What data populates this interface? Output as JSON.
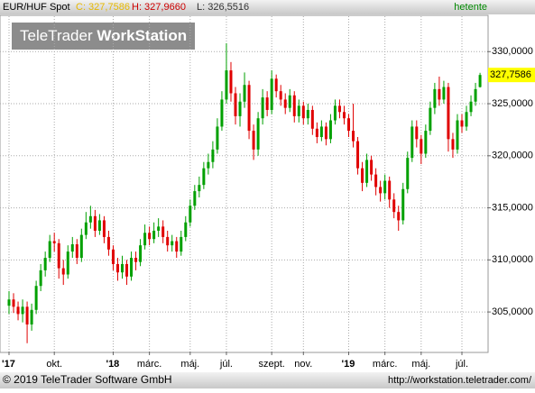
{
  "header": {
    "symbol": "EUR/HUF Spot",
    "close": "C: 327,7586",
    "high": "H: 327,9660",
    "low": "L: 326,5516",
    "period": "hetente"
  },
  "logo": {
    "brand": "TeleTrader",
    "product": "WorkStation"
  },
  "footer": {
    "copyright": "© 2019 TeleTrader Software GmbH",
    "url": "http://workstation.teletrader.com/"
  },
  "chart_data": {
    "type": "candlestick",
    "up_color": "#00a000",
    "down_color": "#e00000",
    "grid": true,
    "ylim": [
      301.2,
      333.4
    ],
    "yticks": [
      {
        "value": 305,
        "label": "305,0000"
      },
      {
        "value": 310,
        "label": "310,0000"
      },
      {
        "value": 315,
        "label": "315,0000"
      },
      {
        "value": 320,
        "label": "320,0000"
      },
      {
        "value": 325,
        "label": "325,0000"
      },
      {
        "value": 330,
        "label": "330,0000"
      }
    ],
    "last_value_label": "327,7586",
    "categories": [
      "'17",
      null,
      null,
      null,
      null,
      null,
      null,
      null,
      null,
      null,
      "okt.",
      null,
      null,
      null,
      null,
      null,
      null,
      null,
      null,
      null,
      null,
      null,
      null,
      "'18",
      null,
      null,
      null,
      null,
      null,
      null,
      null,
      "márc.",
      null,
      null,
      null,
      null,
      null,
      null,
      null,
      null,
      "máj.",
      null,
      null,
      null,
      null,
      null,
      null,
      null,
      "júl.",
      null,
      null,
      null,
      null,
      null,
      null,
      null,
      null,
      null,
      "szept.",
      null,
      null,
      null,
      null,
      null,
      null,
      "nov.",
      null,
      null,
      null,
      null,
      null,
      null,
      null,
      null,
      null,
      "'19",
      null,
      null,
      null,
      null,
      null,
      null,
      null,
      "márc.",
      null,
      null,
      null,
      null,
      null,
      null,
      null,
      "máj.",
      null,
      null,
      null,
      null,
      null,
      null,
      null,
      null,
      "júl.",
      null,
      null,
      null,
      null
    ],
    "open": [
      305.6,
      306.2,
      305.5,
      304.8,
      305.5,
      303.8,
      305.2,
      307.5,
      309.0,
      310.2,
      311.8,
      311.6,
      309.2,
      308.6,
      310.8,
      311.5,
      310.2,
      312.4,
      313.6,
      314.2,
      312.8,
      313.8,
      312.2,
      311.0,
      309.6,
      308.8,
      309.6,
      308.4,
      310.2,
      309.8,
      311.4,
      312.6,
      312.0,
      312.8,
      313.2,
      312.2,
      311.4,
      311.8,
      310.8,
      312.2,
      313.6,
      315.2,
      316.6,
      317.2,
      318.8,
      319.4,
      320.6,
      322.8,
      325.4,
      328.2,
      326.0,
      323.8,
      325.2,
      326.8,
      322.4,
      320.6,
      323.6,
      325.6,
      324.4,
      327.4,
      326.2,
      325.4,
      324.6,
      325.8,
      323.8,
      324.8,
      323.6,
      324.4,
      322.6,
      321.8,
      322.8,
      321.6,
      323.4,
      324.8,
      324.2,
      323.6,
      322.4,
      321.4,
      318.8,
      317.4,
      319.6,
      318.2,
      317.0,
      316.4,
      317.6,
      315.8,
      314.6,
      313.8,
      316.8,
      319.8,
      322.8,
      321.6,
      320.2,
      322.4,
      324.6,
      326.4,
      325.4,
      326.6,
      321.6,
      320.6,
      323.4,
      322.8,
      324.2,
      325.2,
      326.6
    ],
    "high": [
      307.0,
      306.8,
      306.0,
      306.2,
      306.0,
      305.8,
      308.0,
      309.6,
      310.8,
      312.4,
      312.6,
      312.0,
      310.0,
      311.4,
      312.2,
      312.0,
      313.0,
      314.6,
      315.2,
      314.8,
      314.4,
      314.2,
      312.8,
      311.4,
      310.2,
      310.4,
      310.0,
      310.8,
      310.8,
      312.0,
      313.4,
      313.2,
      313.6,
      314.0,
      313.8,
      312.8,
      312.4,
      312.2,
      312.8,
      314.2,
      315.8,
      317.2,
      318.0,
      319.4,
      320.2,
      321.4,
      323.6,
      326.2,
      330.8,
      329.0,
      326.6,
      326.0,
      328.0,
      327.2,
      323.0,
      324.2,
      326.4,
      326.2,
      328.2,
      327.8,
      326.8,
      326.0,
      326.4,
      326.2,
      325.4,
      325.2,
      325.0,
      324.8,
      323.2,
      323.4,
      323.2,
      324.0,
      325.4,
      325.4,
      324.8,
      324.0,
      325.0,
      321.8,
      319.4,
      320.2,
      320.0,
      318.8,
      317.6,
      318.2,
      318.0,
      316.4,
      315.2,
      317.4,
      320.4,
      323.4,
      323.4,
      322.0,
      323.0,
      325.2,
      327.0,
      327.6,
      327.2,
      327.0,
      322.2,
      324.0,
      324.0,
      324.8,
      325.8,
      327.0,
      327.966
    ],
    "low": [
      304.8,
      304.9,
      304.2,
      304.0,
      302.0,
      303.2,
      304.8,
      307.0,
      308.4,
      309.8,
      310.8,
      308.2,
      307.6,
      308.2,
      310.2,
      309.6,
      309.8,
      312.0,
      313.0,
      312.2,
      312.4,
      311.6,
      310.4,
      309.0,
      308.0,
      308.2,
      307.6,
      308.0,
      309.0,
      309.4,
      311.0,
      311.4,
      311.6,
      312.2,
      311.6,
      310.8,
      310.8,
      310.2,
      310.4,
      311.8,
      313.2,
      314.8,
      316.0,
      316.8,
      318.2,
      318.8,
      320.2,
      322.4,
      325.0,
      325.2,
      323.0,
      322.8,
      324.6,
      321.6,
      319.6,
      320.0,
      323.0,
      323.8,
      324.0,
      325.6,
      324.8,
      324.0,
      324.2,
      323.2,
      323.2,
      323.0,
      323.0,
      322.0,
      321.2,
      321.4,
      321.0,
      321.2,
      323.0,
      323.6,
      323.0,
      321.8,
      320.8,
      318.2,
      316.6,
      317.0,
      317.6,
      316.2,
      315.6,
      315.8,
      315.0,
      314.0,
      312.8,
      313.4,
      316.4,
      319.4,
      320.8,
      319.2,
      319.8,
      322.0,
      324.0,
      324.8,
      325.0,
      320.4,
      319.8,
      320.2,
      322.2,
      322.4,
      323.8,
      324.8,
      326.5516
    ],
    "close": [
      306.2,
      305.5,
      304.8,
      305.5,
      303.8,
      305.2,
      307.5,
      309.0,
      310.2,
      311.8,
      311.6,
      309.2,
      308.6,
      310.8,
      311.5,
      310.2,
      312.4,
      313.6,
      314.2,
      312.8,
      313.8,
      312.2,
      311.0,
      309.6,
      308.8,
      309.6,
      308.4,
      310.2,
      309.8,
      311.4,
      312.6,
      312.0,
      312.8,
      313.2,
      312.2,
      311.4,
      311.8,
      310.8,
      312.2,
      313.6,
      315.2,
      316.6,
      317.2,
      318.8,
      319.4,
      320.6,
      322.8,
      325.4,
      328.2,
      326.0,
      323.8,
      325.2,
      326.8,
      322.4,
      320.6,
      323.6,
      325.6,
      324.4,
      327.4,
      326.2,
      325.4,
      324.6,
      325.8,
      323.8,
      324.8,
      323.6,
      324.4,
      322.6,
      321.8,
      322.8,
      321.6,
      323.4,
      324.8,
      324.2,
      323.6,
      322.4,
      321.4,
      318.8,
      317.4,
      319.6,
      318.2,
      317.0,
      316.4,
      317.6,
      315.8,
      314.6,
      313.8,
      316.8,
      319.8,
      322.8,
      321.6,
      320.2,
      322.4,
      324.6,
      326.4,
      325.4,
      326.6,
      321.6,
      320.6,
      323.4,
      322.8,
      324.2,
      325.2,
      326.4,
      327.7586
    ]
  }
}
